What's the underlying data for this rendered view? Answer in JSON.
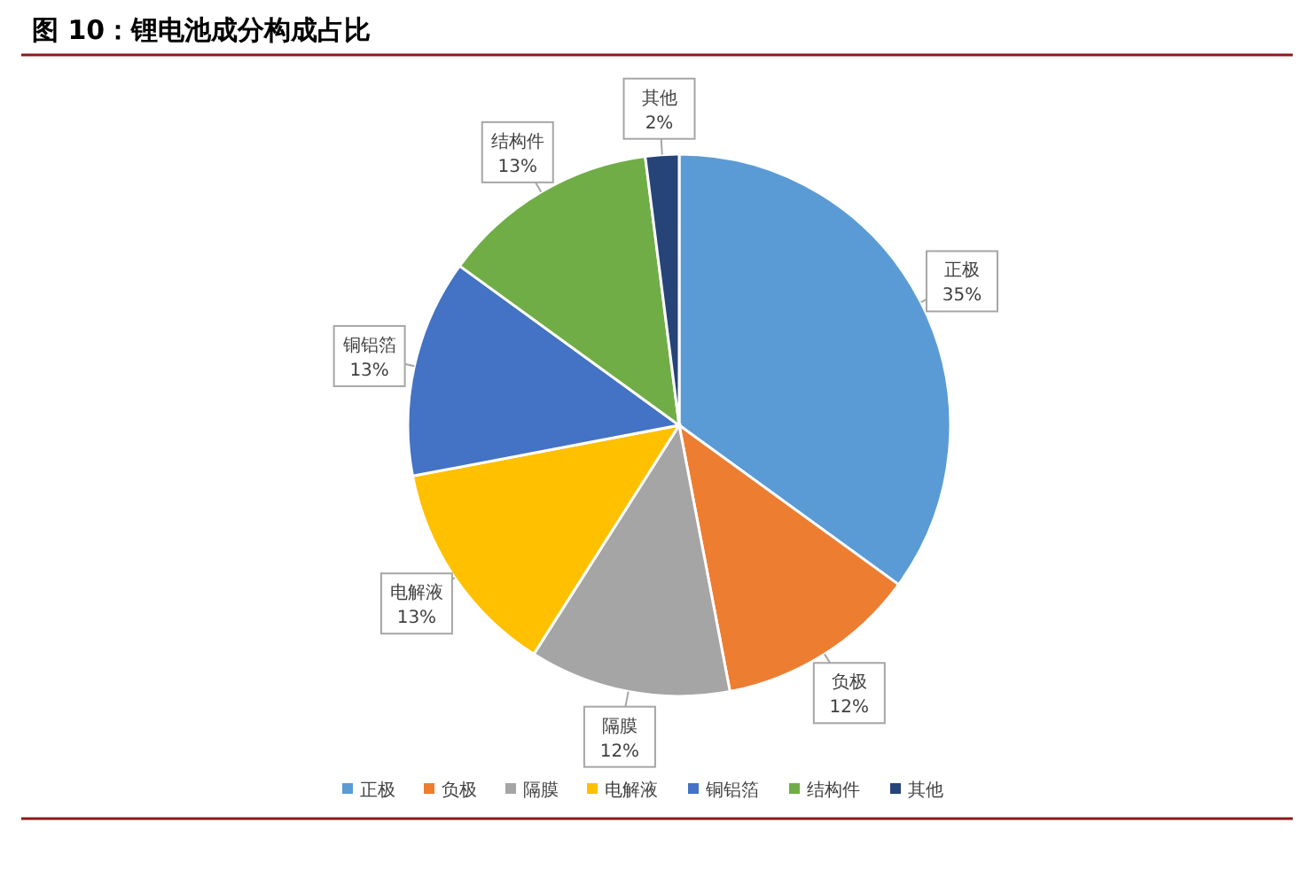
{
  "chart_data": {
    "type": "pie",
    "title": "图 10：锂电池成分构成占比",
    "categories": [
      "正极",
      "负极",
      "隔膜",
      "电解液",
      "铜铝箔",
      "结构件",
      "其他"
    ],
    "values": [
      35,
      12,
      12,
      13,
      13,
      13,
      2
    ],
    "colors": [
      "#5b9bd5",
      "#ed7d31",
      "#a5a5a5",
      "#ffc000",
      "#4472c4",
      "#70ad47",
      "#264478"
    ],
    "value_labels": [
      "35%",
      "12%",
      "12%",
      "13%",
      "13%",
      "13%",
      "2%"
    ],
    "legend": "bottom"
  }
}
